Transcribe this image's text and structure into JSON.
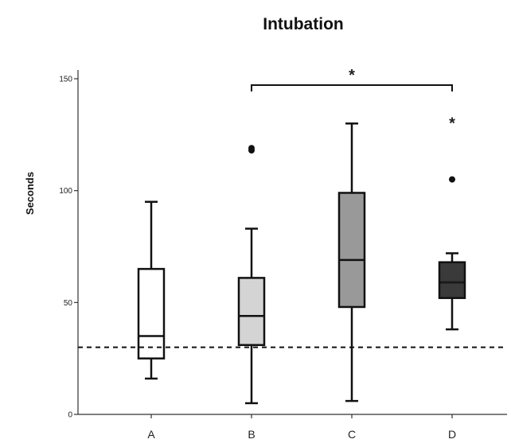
{
  "chart_data": {
    "type": "boxplot",
    "title": "Intubation",
    "xlabel": "",
    "ylabel": "Seconds",
    "ylim": [
      0,
      150
    ],
    "yticks": [
      0,
      50,
      100,
      150
    ],
    "grid": false,
    "categories": [
      "A",
      "B",
      "C",
      "D"
    ],
    "boxes": [
      {
        "category": "A",
        "whisker_low": 16,
        "q1": 25,
        "median": 35,
        "q3": 65,
        "whisker_high": 95,
        "fill": "#ffffff",
        "outliers": [],
        "extremes": []
      },
      {
        "category": "B",
        "whisker_low": 5,
        "q1": 31,
        "median": 44,
        "q3": 61,
        "whisker_high": 83,
        "fill": "#d4d4d4",
        "outliers": [
          118,
          119
        ],
        "extremes": []
      },
      {
        "category": "C",
        "whisker_low": 6,
        "q1": 48,
        "median": 69,
        "q3": 99,
        "whisker_high": 130,
        "fill": "#999999",
        "outliers": [],
        "extremes": []
      },
      {
        "category": "D",
        "whisker_low": 38,
        "q1": 52,
        "median": 59,
        "q3": 68,
        "whisker_high": 72,
        "fill": "#3a3a3a",
        "outliers": [
          105
        ],
        "extremes": [
          131
        ]
      }
    ],
    "reference_line": {
      "y": 30,
      "style": "dashed"
    },
    "significance": {
      "from": "B",
      "to": "D",
      "label": "*"
    },
    "colors": {
      "axis": "#333333",
      "stroke": "#111111",
      "median_on_dark": "#ffffff"
    }
  }
}
